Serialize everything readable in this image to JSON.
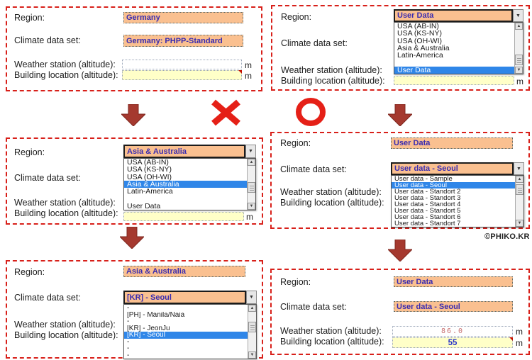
{
  "watermark": "©PHIKO.KR",
  "annotations": {
    "wrong_mark": "X",
    "correct_mark": "O"
  },
  "field_labels": {
    "region": "Region:",
    "climate": "Climate data set:",
    "weather": "Weather station (altitude):",
    "building": "Building location (altitude):",
    "unit_m": "m"
  },
  "colors": {
    "field_peach": "#FAC090",
    "field_yellow": "#FFFFC8",
    "selection_blue": "#2F86E8",
    "value_text_blue": "#3A2BB0",
    "weather_value_red": "#C87070",
    "panel_border_red": "#D8201A",
    "arrow_dark_red": "#A5392F",
    "mark_bright_red": "#E52017"
  },
  "panels": {
    "p1": {
      "region_value": "Germany",
      "climate_value": "Germany: PHPP-Standard",
      "weather_value": "",
      "building_value": ""
    },
    "p2": {
      "region_value": "User Data",
      "region_options": [
        {
          "label": "USA (AB-IN)",
          "selected": false
        },
        {
          "label": "USA (KS-NY)",
          "selected": false
        },
        {
          "label": "USA (OH-WI)",
          "selected": false
        },
        {
          "label": "Asia & Australia",
          "selected": false
        },
        {
          "label": "Latin-America",
          "selected": false
        },
        {
          "label": "",
          "selected": false
        },
        {
          "label": "User Data",
          "selected": true
        }
      ]
    },
    "p3": {
      "region_value": "Asia & Australia",
      "region_options": [
        {
          "label": "USA (AB-IN)",
          "selected": false
        },
        {
          "label": "USA (KS-NY)",
          "selected": false
        },
        {
          "label": "USA (OH-WI)",
          "selected": false
        },
        {
          "label": "Asia & Australia",
          "selected": true
        },
        {
          "label": "Latin-America",
          "selected": false
        },
        {
          "label": "",
          "selected": false
        },
        {
          "label": "User Data",
          "selected": false
        }
      ]
    },
    "p4": {
      "region_value": "User Data",
      "climate_value": "User data - Seoul",
      "climate_options": [
        {
          "label": "User data - Sample",
          "selected": false
        },
        {
          "label": "User data - Seoul",
          "selected": true
        },
        {
          "label": "User data - Standort 2",
          "selected": false
        },
        {
          "label": "User data - Standort 3",
          "selected": false
        },
        {
          "label": "User data - Standort 4",
          "selected": false
        },
        {
          "label": "User data - Standort 5",
          "selected": false
        },
        {
          "label": "User data - Standort 6",
          "selected": false
        },
        {
          "label": "User data - Standort 7",
          "selected": false
        }
      ]
    },
    "p5": {
      "region_value": "Asia & Australia",
      "climate_value": "[KR] - Seoul",
      "climate_options": [
        {
          "label": "-",
          "selected": false
        },
        {
          "label": "[PH] - Manila/Naia",
          "selected": false
        },
        {
          "label": "-",
          "selected": false
        },
        {
          "label": "[KR] - JeonJu",
          "selected": false
        },
        {
          "label": "[KR] - Seoul",
          "selected": true
        },
        {
          "label": "-",
          "selected": false
        },
        {
          "label": "-",
          "selected": false
        },
        {
          "label": "-",
          "selected": false
        }
      ]
    },
    "p6": {
      "region_value": "User Data",
      "climate_value": "User data - Seoul",
      "weather_value": "86.0",
      "building_value": "55"
    }
  }
}
